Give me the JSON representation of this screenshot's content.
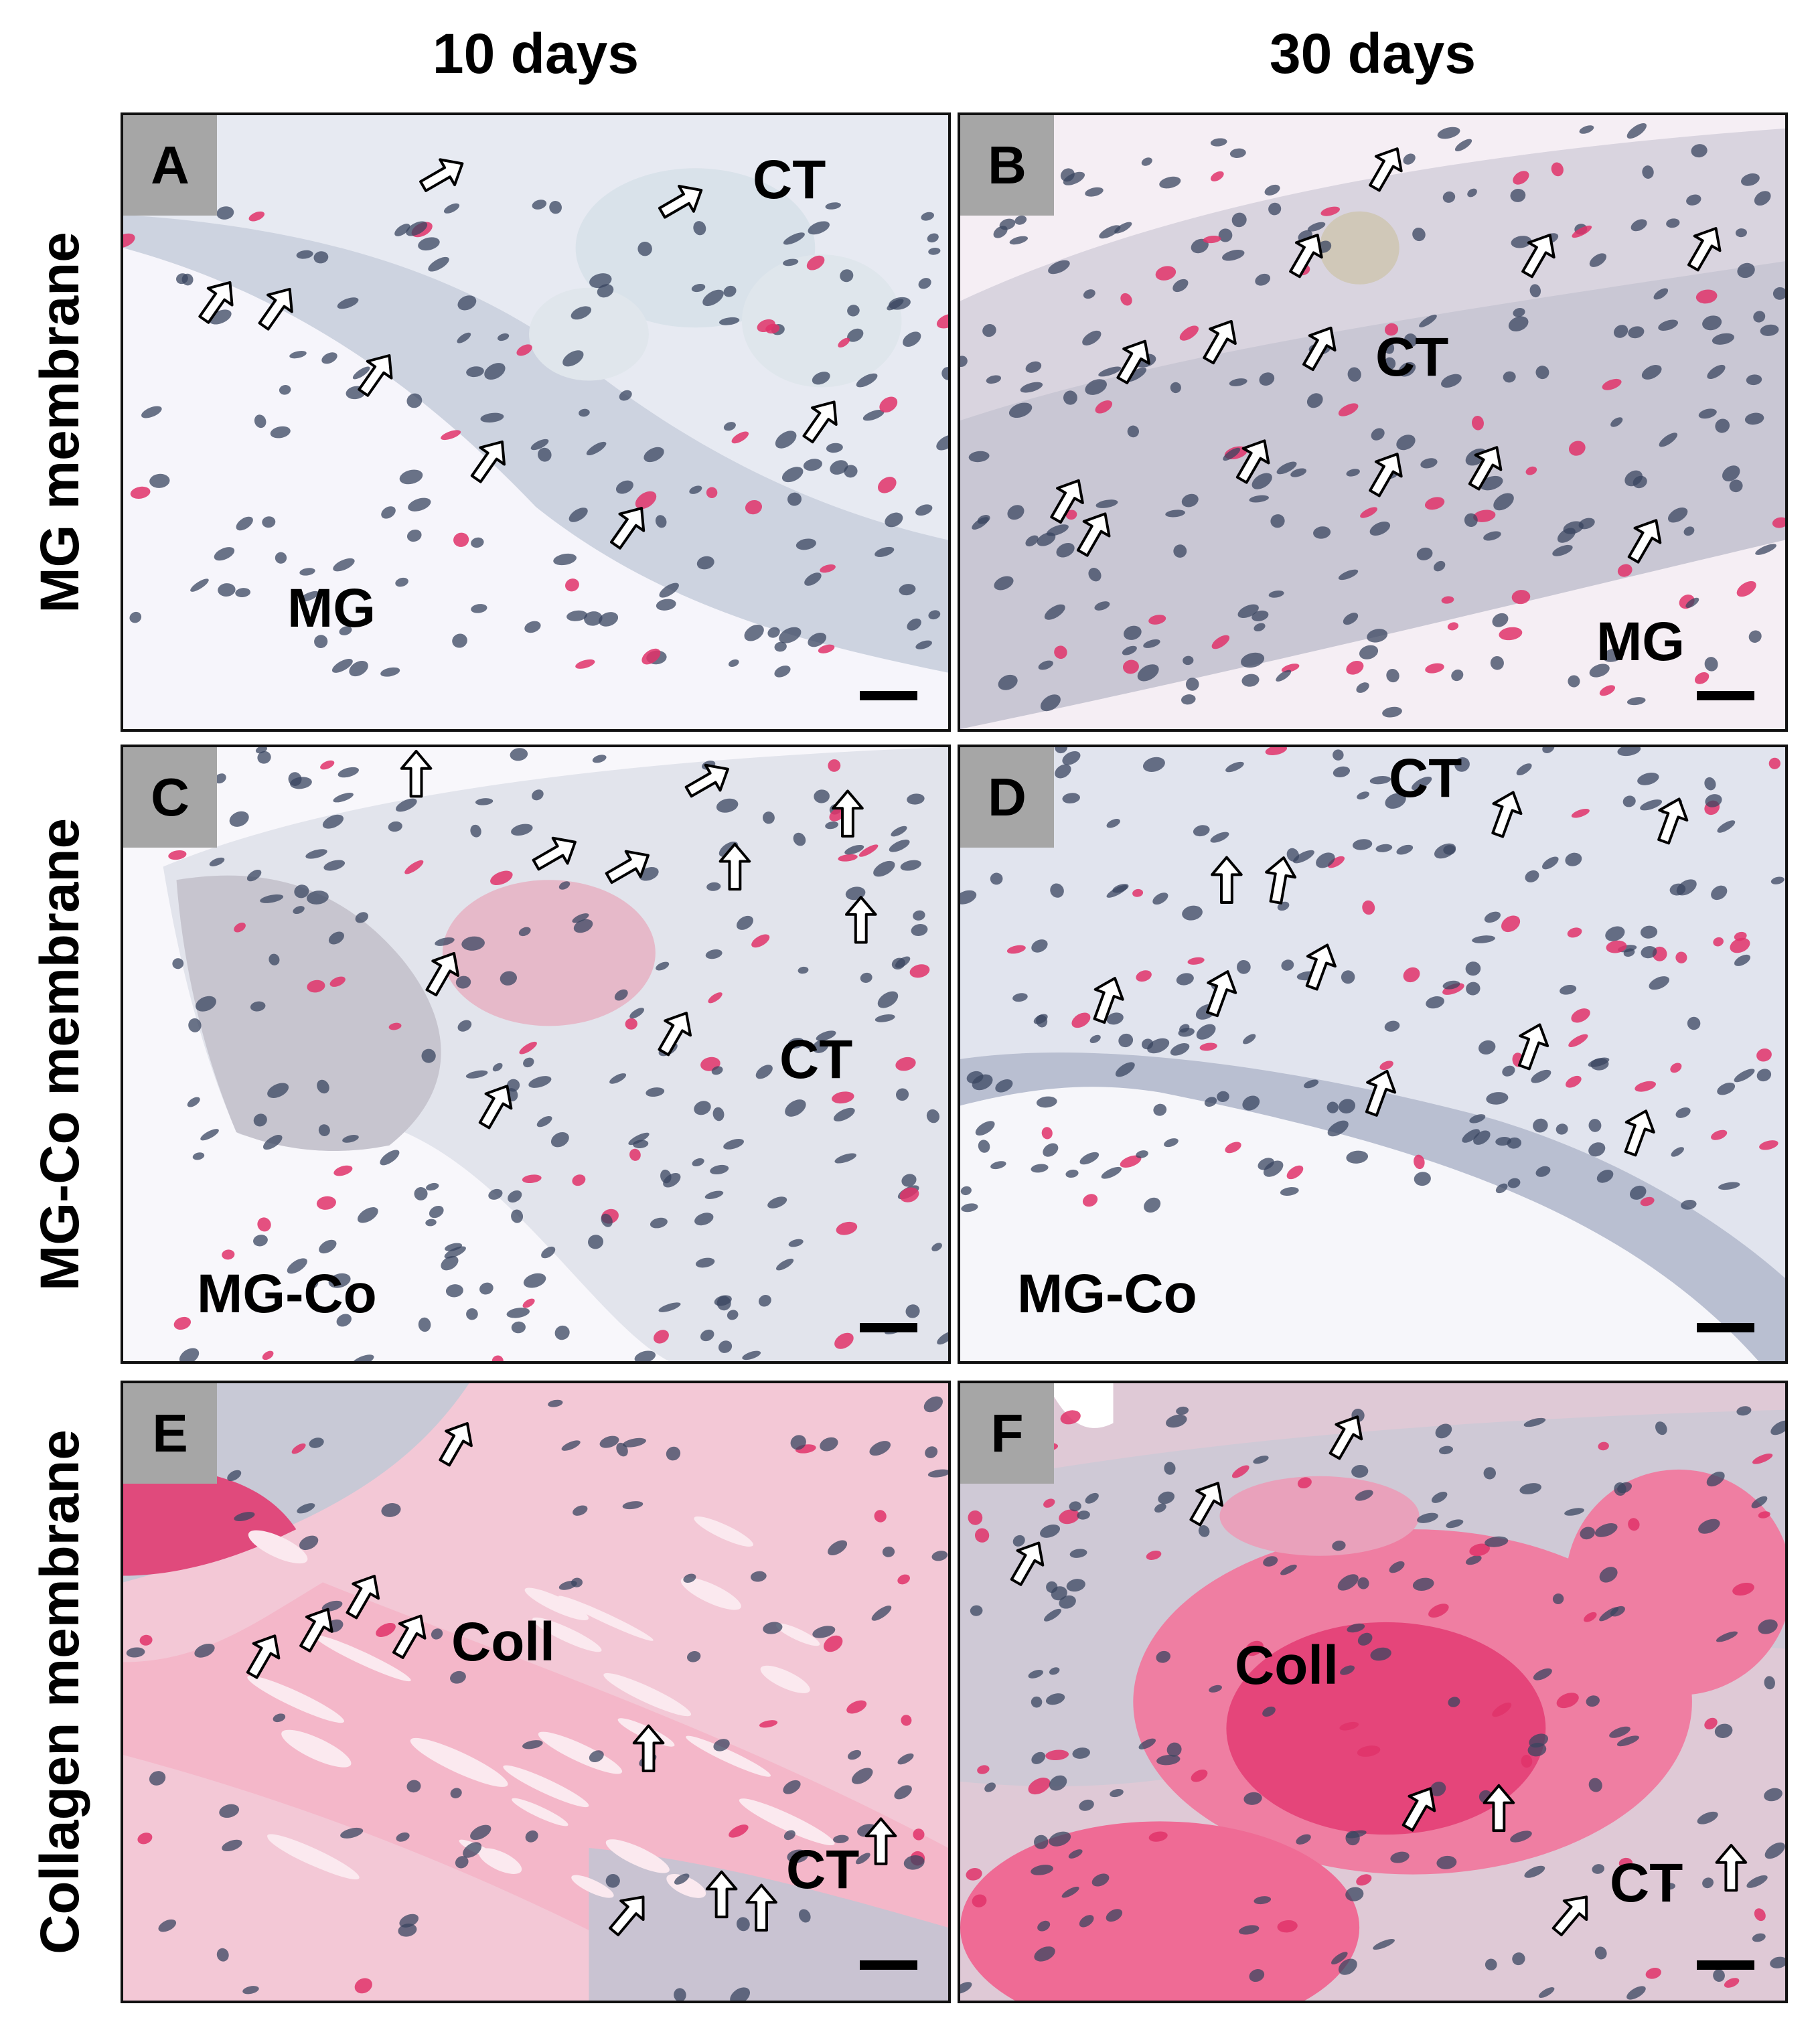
{
  "columns": [
    "10 days",
    "30 days"
  ],
  "rows": [
    "MG membrane",
    "MG-Co membrane",
    "Collagen membrane"
  ],
  "panels": [
    {
      "letter": "A",
      "labels": [
        "CT",
        "MG"
      ]
    },
    {
      "letter": "B",
      "labels": [
        "CT",
        "MG"
      ]
    },
    {
      "letter": "C",
      "labels": [
        "CT",
        "MG-Co"
      ]
    },
    {
      "letter": "D",
      "labels": [
        "CT",
        "MG-Co"
      ]
    },
    {
      "letter": "E",
      "labels": [
        "Coll",
        "CT"
      ]
    },
    {
      "letter": "F",
      "labels": [
        "Coll",
        "CT"
      ]
    }
  ],
  "colors": {
    "stain_red": "#e0336a",
    "nuclei": "#3a4660",
    "background_tissue": "#e9ecf3",
    "arrow_fill": "#ffffff"
  }
}
